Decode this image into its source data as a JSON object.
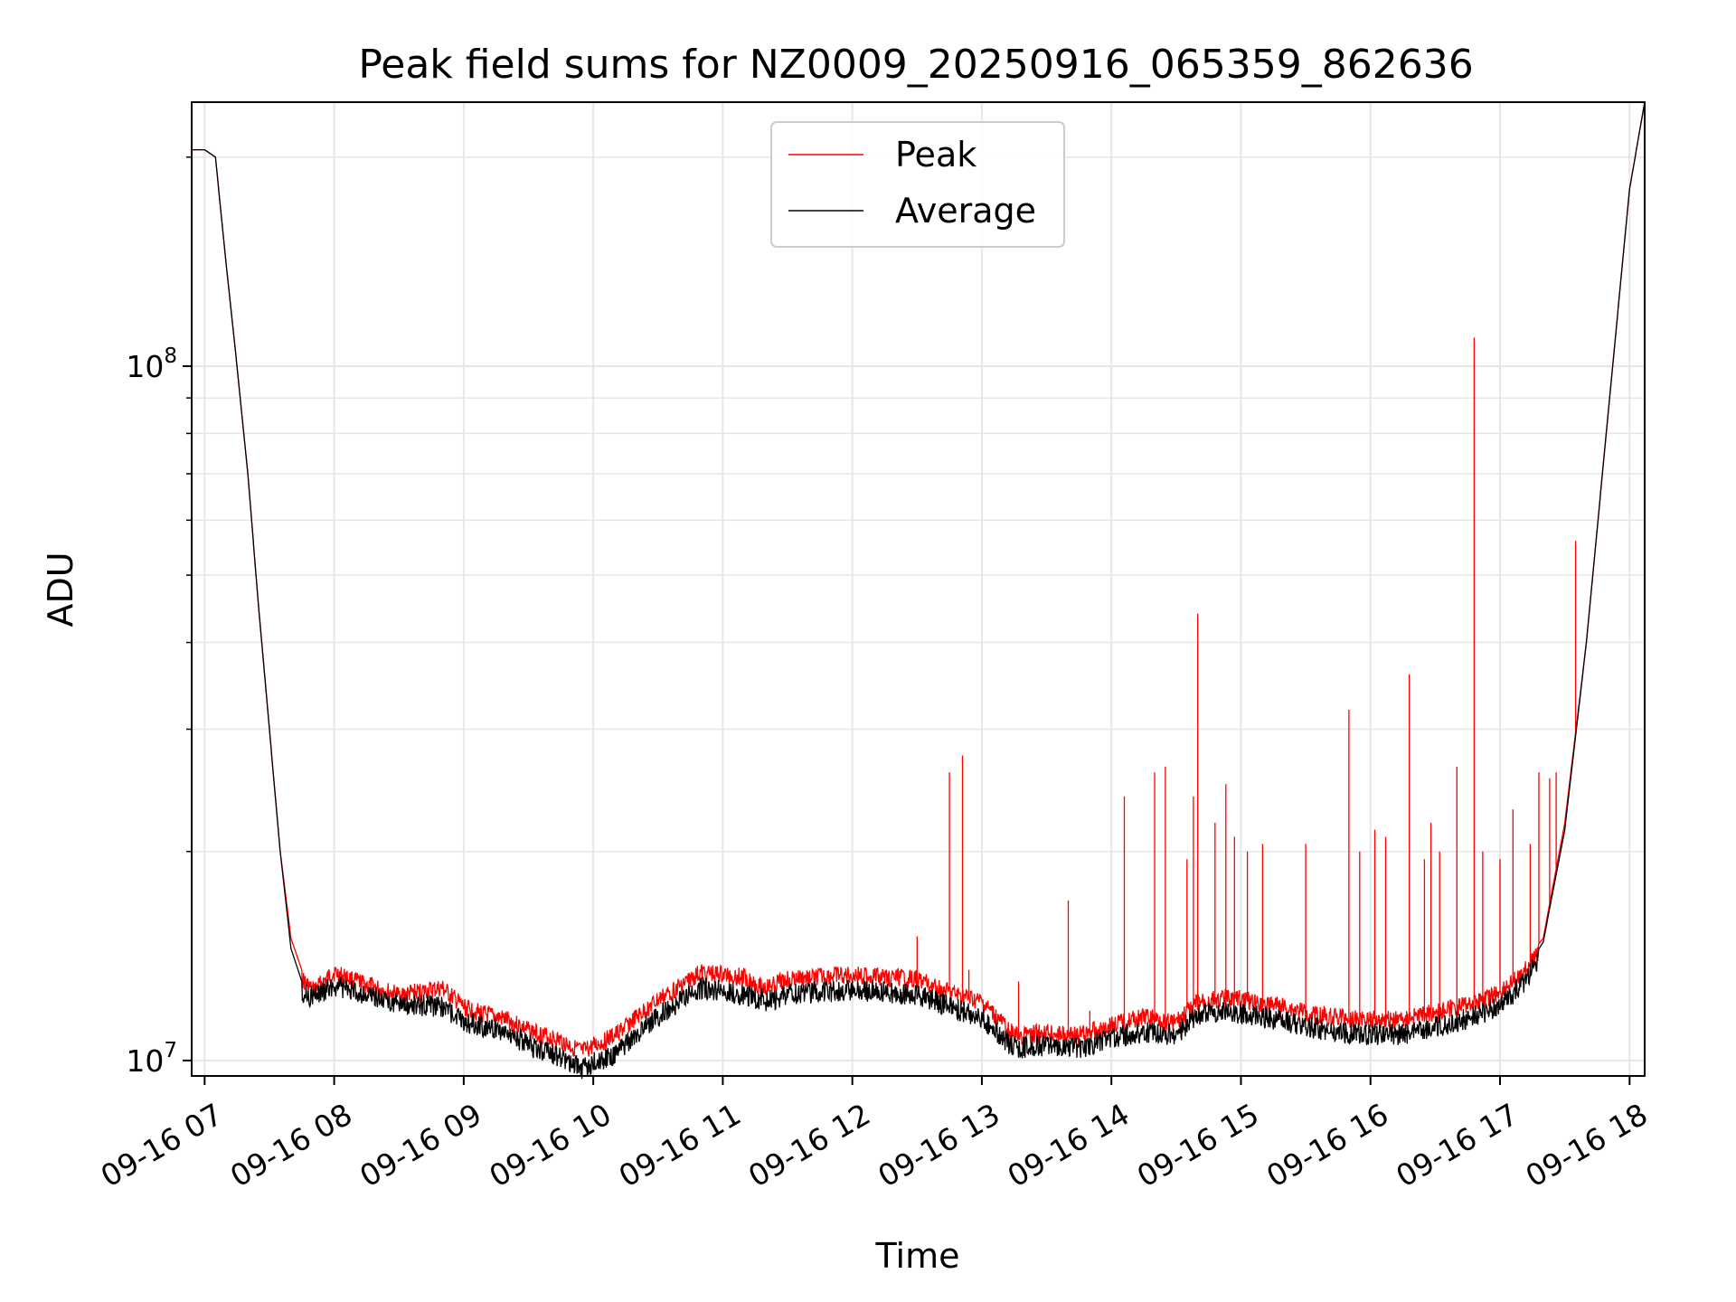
{
  "chart_data": {
    "type": "line",
    "title": "Peak field sums for NZ0009_20250916_065359_862636",
    "xlabel": "Time",
    "ylabel": "ADU",
    "y_scale": "log",
    "ylim": [
      9500000,
      240000000
    ],
    "xlim": [
      "09-16 06:54",
      "09-16 18:07"
    ],
    "x_ticks": [
      "09-16 07",
      "09-16 08",
      "09-16 09",
      "09-16 10",
      "09-16 11",
      "09-16 12",
      "09-16 13",
      "09-16 14",
      "09-16 15",
      "09-16 16",
      "09-16 17",
      "09-16 18"
    ],
    "y_ticks": [
      {
        "value": 10000000,
        "mantissa": "10",
        "exp": "7"
      },
      {
        "value": 100000000,
        "mantissa": "10",
        "exp": "8"
      }
    ],
    "grid": true,
    "legend": {
      "position": "top-center",
      "entries": [
        "Peak",
        "Average"
      ]
    },
    "series": [
      {
        "name": "Peak",
        "color": "#ff0000",
        "baseline": [
          [
            "06:54",
            205000000
          ],
          [
            "07:00",
            205000000
          ],
          [
            "07:05",
            200000000
          ],
          [
            "07:10",
            140000000
          ],
          [
            "07:15",
            100000000
          ],
          [
            "07:20",
            70000000
          ],
          [
            "07:25",
            45000000
          ],
          [
            "07:30",
            30000000
          ],
          [
            "07:35",
            20000000
          ],
          [
            "07:40",
            15000000
          ],
          [
            "07:45",
            13500000
          ],
          [
            "07:50",
            13000000
          ],
          [
            "08:00",
            13800000
          ],
          [
            "08:10",
            13400000
          ],
          [
            "08:30",
            12800000
          ],
          [
            "08:50",
            13100000
          ],
          [
            "09:00",
            12300000
          ],
          [
            "09:10",
            12000000
          ],
          [
            "09:20",
            11800000
          ],
          [
            "09:30",
            11400000
          ],
          [
            "09:45",
            11000000
          ],
          [
            "09:55",
            10600000
          ],
          [
            "10:10",
            11200000
          ],
          [
            "10:30",
            12600000
          ],
          [
            "10:50",
            13800000
          ],
          [
            "11:10",
            13600000
          ],
          [
            "11:20",
            13100000
          ],
          [
            "11:30",
            13500000
          ],
          [
            "12:00",
            13700000
          ],
          [
            "12:30",
            13500000
          ],
          [
            "12:45",
            12900000
          ],
          [
            "13:00",
            12500000
          ],
          [
            "13:15",
            11200000
          ],
          [
            "13:30",
            11300000
          ],
          [
            "13:45",
            11200000
          ],
          [
            "14:00",
            11600000
          ],
          [
            "14:15",
            11900000
          ],
          [
            "14:30",
            11700000
          ],
          [
            "14:40",
            12500000
          ],
          [
            "14:55",
            12700000
          ],
          [
            "15:15",
            12400000
          ],
          [
            "15:30",
            12100000
          ],
          [
            "15:45",
            11900000
          ],
          [
            "16:00",
            11800000
          ],
          [
            "16:15",
            11800000
          ],
          [
            "16:30",
            12100000
          ],
          [
            "16:45",
            12400000
          ],
          [
            "17:00",
            12900000
          ],
          [
            "17:10",
            13700000
          ],
          [
            "17:20",
            15000000
          ],
          [
            "17:30",
            22000000
          ],
          [
            "17:40",
            40000000
          ],
          [
            "17:50",
            85000000
          ],
          [
            "18:00",
            180000000
          ],
          [
            "18:07",
            240000000
          ]
        ],
        "spikes": [
          [
            "12:30",
            15100000
          ],
          [
            "12:45",
            26000000
          ],
          [
            "12:51",
            27500000
          ],
          [
            "12:54",
            13500000
          ],
          [
            "13:17",
            13000000
          ],
          [
            "13:40",
            17000000
          ],
          [
            "13:50",
            11800000
          ],
          [
            "14:06",
            24000000
          ],
          [
            "14:20",
            26000000
          ],
          [
            "14:25",
            26500000
          ],
          [
            "14:35",
            19500000
          ],
          [
            "14:38",
            24000000
          ],
          [
            "14:40",
            44000000
          ],
          [
            "14:48",
            22000000
          ],
          [
            "14:53",
            25000000
          ],
          [
            "14:57",
            21000000
          ],
          [
            "15:03",
            20000000
          ],
          [
            "15:10",
            20500000
          ],
          [
            "15:30",
            20500000
          ],
          [
            "15:50",
            32000000
          ],
          [
            "15:55",
            20000000
          ],
          [
            "16:02",
            21500000
          ],
          [
            "16:07",
            21000000
          ],
          [
            "16:18",
            36000000
          ],
          [
            "16:25",
            19500000
          ],
          [
            "16:28",
            22000000
          ],
          [
            "16:32",
            20000000
          ],
          [
            "16:40",
            26500000
          ],
          [
            "16:48",
            110000000
          ],
          [
            "16:52",
            20000000
          ],
          [
            "17:00",
            19500000
          ],
          [
            "17:06",
            23000000
          ],
          [
            "17:14",
            20500000
          ],
          [
            "17:18",
            26000000
          ],
          [
            "17:23",
            25500000
          ],
          [
            "17:26",
            26000000
          ],
          [
            "17:35",
            56000000
          ]
        ]
      },
      {
        "name": "Average",
        "color": "#000000",
        "baseline": [
          [
            "06:54",
            205000000
          ],
          [
            "07:00",
            205000000
          ],
          [
            "07:05",
            200000000
          ],
          [
            "07:10",
            140000000
          ],
          [
            "07:15",
            100000000
          ],
          [
            "07:20",
            70000000
          ],
          [
            "07:25",
            45000000
          ],
          [
            "07:30",
            30000000
          ],
          [
            "07:35",
            20000000
          ],
          [
            "07:40",
            14500000
          ],
          [
            "07:45",
            13000000
          ],
          [
            "07:50",
            12800000
          ],
          [
            "08:00",
            13300000
          ],
          [
            "08:10",
            13000000
          ],
          [
            "08:30",
            12500000
          ],
          [
            "08:50",
            12400000
          ],
          [
            "09:00",
            11800000
          ],
          [
            "09:10",
            11600000
          ],
          [
            "09:20",
            11400000
          ],
          [
            "09:30",
            10900000
          ],
          [
            "09:45",
            10500000
          ],
          [
            "09:55",
            10100000
          ],
          [
            "10:10",
            10600000
          ],
          [
            "10:30",
            12000000
          ],
          [
            "10:50",
            13200000
          ],
          [
            "11:10",
            12900000
          ],
          [
            "11:20",
            12600000
          ],
          [
            "11:30",
            12900000
          ],
          [
            "12:00",
            13100000
          ],
          [
            "12:30",
            12900000
          ],
          [
            "12:45",
            12400000
          ],
          [
            "13:00",
            11900000
          ],
          [
            "13:15",
            10800000
          ],
          [
            "13:30",
            10900000
          ],
          [
            "13:45",
            10800000
          ],
          [
            "14:00",
            11200000
          ],
          [
            "14:15",
            11400000
          ],
          [
            "14:30",
            11300000
          ],
          [
            "14:40",
            12100000
          ],
          [
            "14:55",
            12200000
          ],
          [
            "15:15",
            11900000
          ],
          [
            "15:30",
            11600000
          ],
          [
            "15:45",
            11400000
          ],
          [
            "16:00",
            11300000
          ],
          [
            "16:15",
            11300000
          ],
          [
            "16:30",
            11600000
          ],
          [
            "16:45",
            11900000
          ],
          [
            "17:00",
            12400000
          ],
          [
            "17:10",
            13300000
          ],
          [
            "17:20",
            14800000
          ],
          [
            "17:30",
            21500000
          ],
          [
            "17:40",
            40000000
          ],
          [
            "17:50",
            85000000
          ],
          [
            "18:00",
            180000000
          ],
          [
            "18:07",
            240000000
          ]
        ]
      }
    ]
  }
}
